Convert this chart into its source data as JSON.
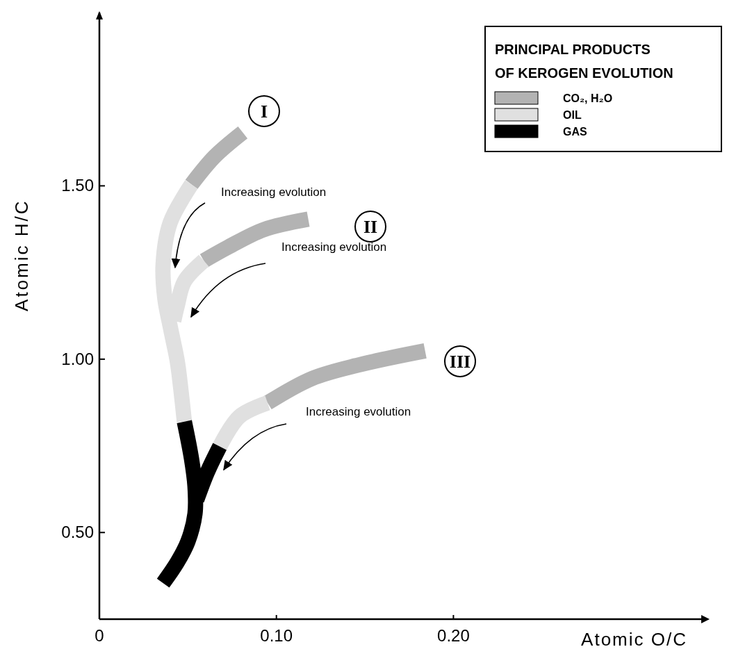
{
  "chart_data": {
    "type": "line",
    "xlabel": "Atomic O/C",
    "ylabel": "Atomic H/C",
    "legend_title": "PRINCIPAL PRODUCTS OF KEROGEN EVOLUTION",
    "legend": "top right",
    "xlim": [
      0,
      0.34
    ],
    "ylim": [
      0.25,
      2.0
    ],
    "xticks": [
      0,
      {
        "value": 0.1,
        "label": "0.10"
      },
      {
        "value": 0.2,
        "label": "0.20"
      }
    ],
    "yticks": [
      {
        "value": 0.5,
        "label": "0.50"
      },
      {
        "value": 1.0,
        "label": "1.00"
      },
      {
        "value": 1.5,
        "label": "1.50"
      }
    ],
    "series": [
      {
        "name": "CO₂, H₂O",
        "color": "#b3b3b3",
        "x": [
          0.081,
          0.065,
          0.052,
          null,
          0.118,
          0.093,
          0.073,
          0.059,
          null,
          0.184,
          0.147,
          0.12,
          0.095
        ],
        "values": [
          1.654,
          1.584,
          1.504,
          null,
          1.404,
          1.374,
          1.324,
          1.284,
          null,
          1.024,
          0.984,
          0.944,
          0.874
        ]
      },
      {
        "name": "OIL",
        "color": "#e0e0e0",
        "x": [
          0.052,
          0.04,
          0.036,
          0.037,
          0.04,
          0.044,
          0.046,
          0.048,
          null,
          0.059,
          0.048,
          0.044,
          0.042,
          null,
          0.095,
          0.079,
          0.068
        ],
        "values": [
          1.504,
          1.394,
          1.274,
          1.174,
          1.094,
          0.994,
          0.914,
          0.82,
          null,
          1.284,
          1.224,
          1.154,
          1.11,
          null,
          0.874,
          0.834,
          0.748
        ]
      },
      {
        "name": "GAS",
        "color": "#000000",
        "x": [
          0.048,
          0.052,
          0.054,
          0.054,
          0.05,
          0.044,
          0.036,
          null,
          0.068,
          0.061,
          0.055
        ],
        "values": [
          0.82,
          0.714,
          0.634,
          0.554,
          0.474,
          0.414,
          0.354,
          null,
          0.748,
          0.674,
          0.594
        ]
      }
    ],
    "annotations": [
      "I",
      "II",
      "III",
      "Increasing evolution",
      "Increasing evolution",
      "Increasing evolution"
    ]
  }
}
